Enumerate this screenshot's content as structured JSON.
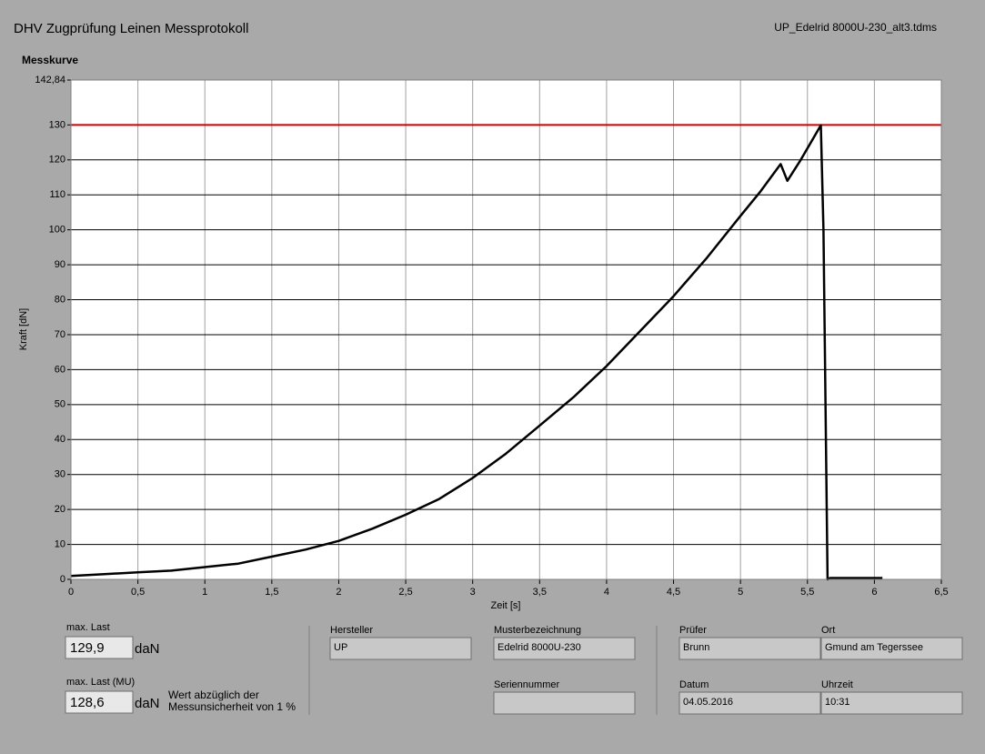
{
  "header": {
    "title": "DHV Zugprüfung Leinen Messprotokoll",
    "file": "UP_Edelrid 8000U-230_alt3.tdms"
  },
  "chart_data": {
    "type": "line",
    "title": "Messkurve",
    "x_label": "Zeit [s]",
    "y_label": "Kraft [dN]",
    "x": [
      0,
      0.25,
      0.5,
      0.75,
      1,
      1.25,
      1.5,
      1.75,
      2,
      2.25,
      2.5,
      2.75,
      3,
      3.25,
      3.5,
      3.75,
      4,
      4.25,
      4.5,
      4.75,
      5,
      5.15,
      5.3,
      5.35,
      5.45,
      5.6,
      5.62,
      5.65,
      5.67,
      6.06
    ],
    "values": [
      1,
      1.5,
      2,
      2.5,
      3.5,
      4.5,
      6.5,
      8.5,
      11,
      14.5,
      18.5,
      23,
      29,
      36,
      44,
      52,
      61,
      71,
      81,
      92,
      104,
      111,
      118.8,
      114,
      120,
      129.9,
      100,
      0,
      0.4,
      0.4
    ],
    "color": "#000000",
    "reference_line": {
      "value": 130,
      "color": "#d00000"
    },
    "xlim": [
      0,
      6.5
    ],
    "ylim": [
      0,
      142.84
    ],
    "xticks": [
      0,
      {
        "value": 0.5,
        "label": "0,5"
      },
      1,
      {
        "value": 1.5,
        "label": "1,5"
      },
      2,
      {
        "value": 2.5,
        "label": "2,5"
      },
      3,
      {
        "value": 3.5,
        "label": "3,5"
      },
      4,
      {
        "value": 4.5,
        "label": "4,5"
      },
      5,
      {
        "value": 5.5,
        "label": "5,5"
      },
      6,
      {
        "value": 6.5,
        "label": "6,5"
      }
    ],
    "yticks": [
      0,
      10,
      20,
      30,
      40,
      50,
      60,
      70,
      80,
      90,
      100,
      110,
      120,
      130,
      {
        "value": 142.84,
        "label": "142,84"
      }
    ],
    "grid": true
  },
  "results": [
    {
      "label": "max. Last",
      "value": "129,9",
      "unit": "daN"
    },
    {
      "label": "max. Last (MU)",
      "value": "128,6",
      "unit": "daN",
      "note": [
        "Wert abzüglich der",
        "Messunsicherheit von 1 %"
      ]
    }
  ],
  "info": [
    {
      "label": "Hersteller",
      "value": "UP"
    },
    {
      "label": "Musterbezeichnung",
      "value": "Edelrid 8000U-230"
    },
    {
      "label": "Seriennummer"
    },
    {
      "label": "Prüfer",
      "value": "Brunn"
    },
    {
      "label": "Ort",
      "value": "Gmund am Tegerssee"
    },
    {
      "label": "Datum",
      "value": "04.05.2016"
    },
    {
      "label": "Uhrzeit",
      "value": "10:31"
    }
  ]
}
